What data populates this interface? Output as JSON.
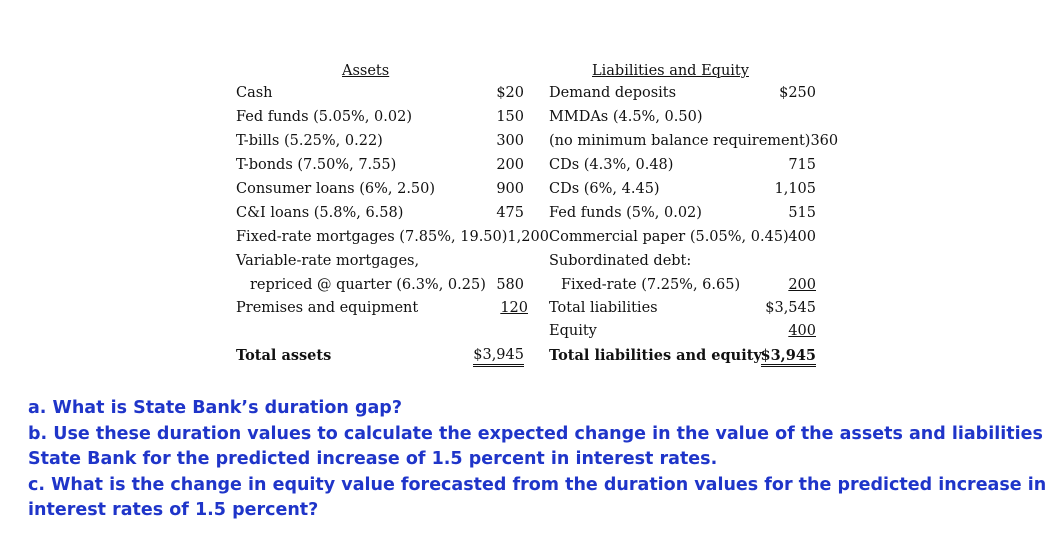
{
  "assets": {
    "header": "Assets",
    "rows": [
      {
        "label": "Cash",
        "value": "$20"
      },
      {
        "label": "Fed funds (5.05%, 0.02)",
        "value": "150"
      },
      {
        "label": "T-bills (5.25%, 0.22)",
        "value": "300"
      },
      {
        "label": "T-bonds (7.50%, 7.55)",
        "value": "200"
      },
      {
        "label": "Consumer loans (6%, 2.50)",
        "value": "900"
      },
      {
        "label": "C&I loans (5.8%, 6.58)",
        "value": "475"
      },
      {
        "label": "Fixed-rate mortgages (7.85%, 19.50)1,200",
        "value": ""
      },
      {
        "label": "Variable-rate mortgages,",
        "value": ""
      },
      {
        "label": "repriced @ quarter (6.3%, 0.25)",
        "value": "580"
      },
      {
        "label": "Premises and equipment",
        "value": "120"
      }
    ],
    "total_label": "Total assets",
    "total_value": "$3,945"
  },
  "liabilities": {
    "header": "Liabilities and Equity",
    "rows": [
      {
        "label": "Demand deposits",
        "value": "$250"
      },
      {
        "label": "MMDAs (4.5%, 0.50)",
        "value": ""
      },
      {
        "label": "(no minimum balance requirement)360",
        "value": ""
      },
      {
        "label": "CDs (4.3%, 0.48)",
        "value": "715"
      },
      {
        "label": "CDs (6%, 4.45)",
        "value": "1,105"
      },
      {
        "label": "Fed funds (5%, 0.02)",
        "value": "515"
      },
      {
        "label": "Commercial paper (5.05%, 0.45)",
        "value": "400"
      },
      {
        "label": "Subordinated debt:",
        "value": ""
      },
      {
        "label": "Fixed-rate (7.25%, 6.65)",
        "value": "200"
      },
      {
        "label": "Total liabilities",
        "value": "$3,545"
      },
      {
        "label": "Equity",
        "value": "400"
      }
    ],
    "total_label": "Total liabilities and equity",
    "total_value": "$3,945"
  },
  "questions": {
    "a": "a. What is State Bank’s duration gap?",
    "b1": "b. Use these duration values to calculate the expected change in the value of the assets and liabilities of",
    "b2": "State Bank for the predicted increase of 1.5 percent in interest rates.",
    "c1": "c. What is the change in equity value forecasted from the duration values for the predicted increase in",
    "c2": "interest rates of 1.5 percent?"
  }
}
